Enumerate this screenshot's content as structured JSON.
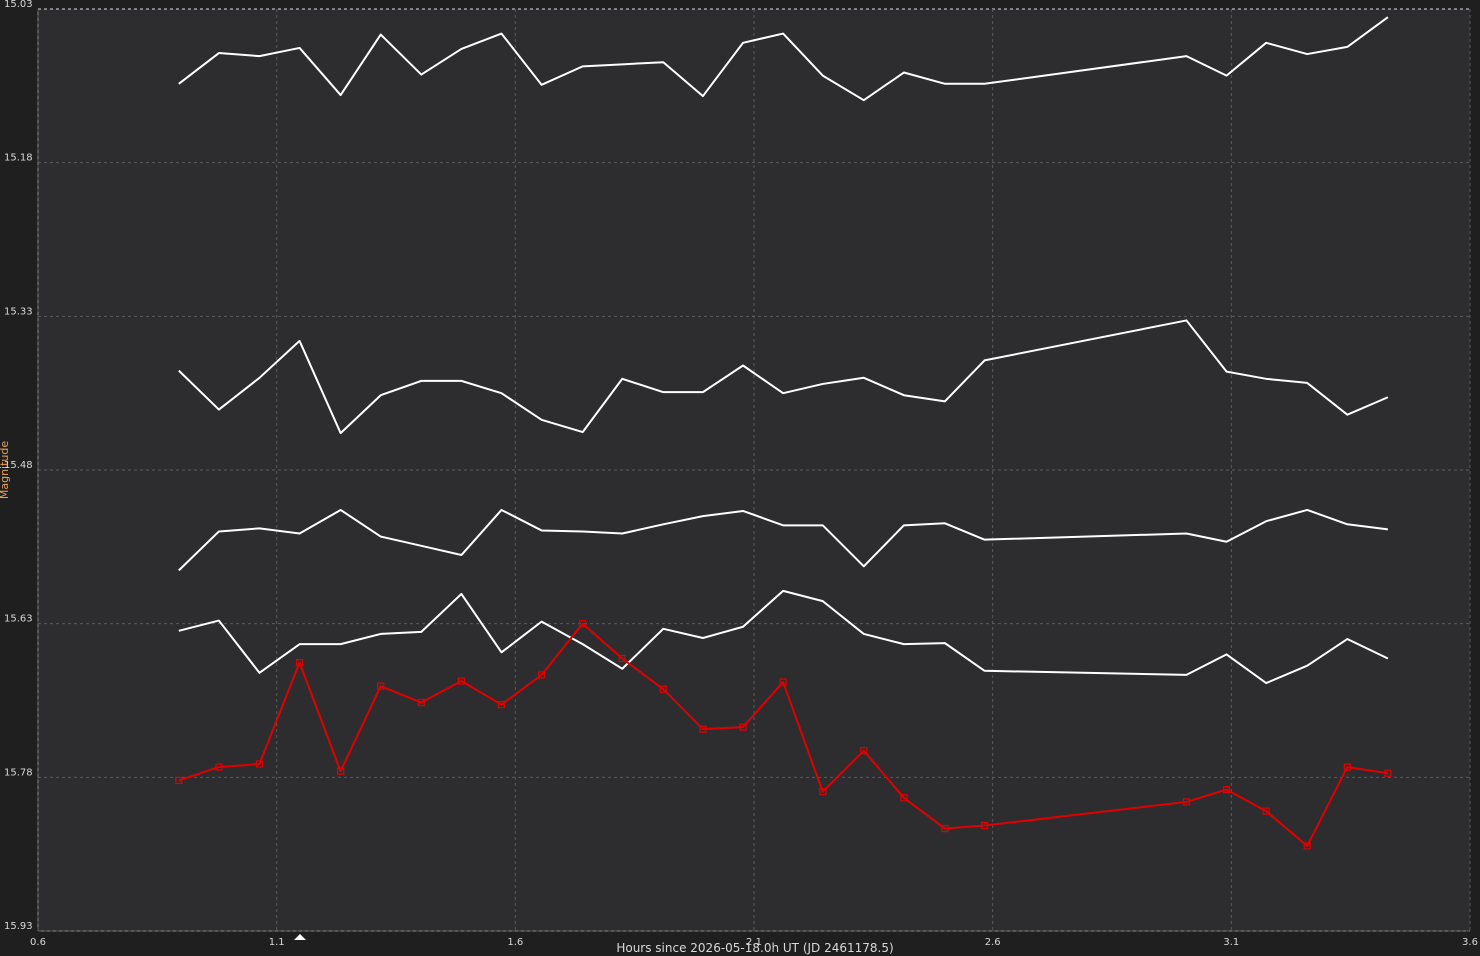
{
  "chart_data": {
    "type": "line",
    "x_label": "Hours since 2026-05-18.0h UT (JD 2461178.5)",
    "y_label": "Magnitude",
    "xlim": [
      0.6,
      3.6
    ],
    "xticks": [
      0.6,
      1.1,
      1.6,
      2.1,
      2.6,
      3.1,
      3.6
    ],
    "ylim": [
      15.93,
      15.03
    ],
    "yticks": [
      15.03,
      15.18,
      15.33,
      15.48,
      15.63,
      15.78,
      15.93
    ],
    "grid": true,
    "x": [
      0.895,
      0.979,
      1.064,
      1.148,
      1.234,
      1.318,
      1.403,
      1.487,
      1.571,
      1.655,
      1.741,
      1.824,
      1.91,
      1.993,
      2.077,
      2.161,
      2.244,
      2.33,
      2.414,
      2.5,
      2.583,
      3.006,
      3.09,
      3.173,
      3.259,
      3.343,
      3.428
    ],
    "series": [
      {
        "color": "#ffffff",
        "markers": false,
        "values": [
          15.103,
          15.073,
          15.076,
          15.068,
          15.114,
          15.055,
          15.094,
          15.069,
          15.054,
          15.104,
          15.086,
          15.084,
          15.082,
          15.115,
          15.063,
          15.054,
          15.095,
          15.119,
          15.092,
          15.103,
          15.103,
          15.076,
          15.095,
          15.063,
          15.074,
          15.067,
          15.038
        ]
      },
      {
        "color": "#ffffff",
        "markers": false,
        "values": [
          15.383,
          15.421,
          15.39,
          15.354,
          15.444,
          15.407,
          15.393,
          15.393,
          15.405,
          15.431,
          15.443,
          15.391,
          15.404,
          15.404,
          15.378,
          15.405,
          15.396,
          15.39,
          15.407,
          15.413,
          15.373,
          15.334,
          15.384,
          15.391,
          15.395,
          15.426,
          15.409
        ]
      },
      {
        "color": "#ffffff",
        "markers": false,
        "values": [
          15.578,
          15.54,
          15.537,
          15.542,
          15.519,
          15.545,
          15.554,
          15.563,
          15.519,
          15.539,
          15.54,
          15.542,
          15.533,
          15.525,
          15.52,
          15.534,
          15.534,
          15.574,
          15.534,
          15.532,
          15.548,
          15.542,
          15.55,
          15.53,
          15.519,
          15.533,
          15.538
        ]
      },
      {
        "color": "#ffffff",
        "markers": false,
        "values": [
          15.637,
          15.627,
          15.678,
          15.65,
          15.65,
          15.64,
          15.638,
          15.601,
          15.658,
          15.628,
          15.65,
          15.674,
          15.635,
          15.644,
          15.633,
          15.598,
          15.608,
          15.64,
          15.65,
          15.649,
          15.676,
          15.68,
          15.66,
          15.688,
          15.671,
          15.645,
          15.664
        ]
      },
      {
        "color": "#e00000",
        "markers": true,
        "values": [
          15.783,
          15.77,
          15.767,
          15.668,
          15.774,
          15.691,
          15.707,
          15.686,
          15.709,
          15.68,
          15.63,
          15.664,
          15.694,
          15.733,
          15.731,
          15.687,
          15.794,
          15.754,
          15.8,
          15.83,
          15.827,
          15.804,
          15.792,
          15.813,
          15.847,
          15.77,
          15.776
        ]
      }
    ]
  }
}
